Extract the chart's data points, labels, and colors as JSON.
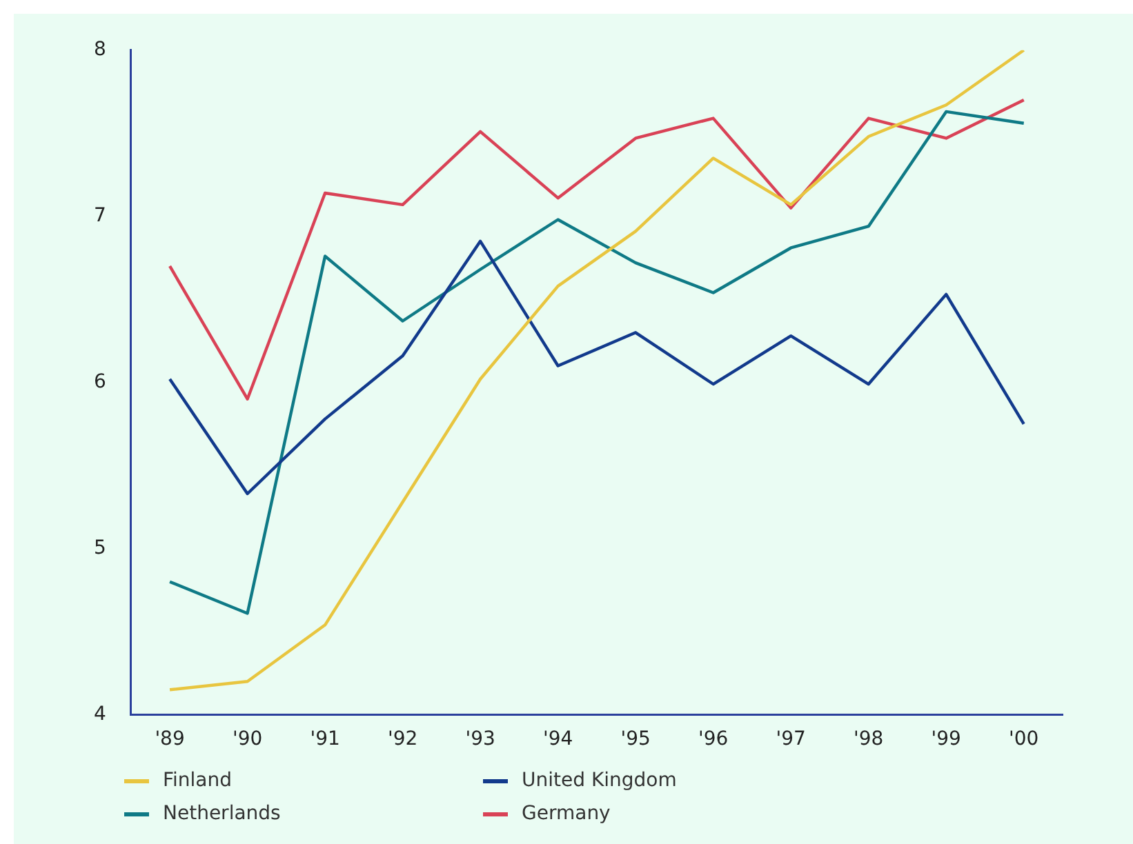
{
  "chart_data": {
    "type": "line",
    "categories": [
      "'89",
      "'90",
      "'91",
      "'92",
      "'93",
      "'94",
      "'95",
      "'96",
      "'97",
      "'98",
      "'99",
      "'00"
    ],
    "series": [
      {
        "name": "Finland",
        "color": "#e8c53f",
        "values": [
          4.15,
          4.2,
          4.54,
          5.28,
          6.02,
          6.58,
          6.91,
          7.35,
          7.07,
          7.48,
          7.67,
          8.0
        ]
      },
      {
        "name": "United Kingdom",
        "color": "#123a8c",
        "values": [
          6.02,
          5.33,
          5.78,
          6.16,
          6.85,
          6.1,
          6.3,
          5.99,
          6.28,
          5.99,
          6.53,
          5.75
        ]
      },
      {
        "name": "Netherlands",
        "color": "#0f7a86",
        "values": [
          4.8,
          4.61,
          6.76,
          6.37,
          6.68,
          6.98,
          6.72,
          6.54,
          6.81,
          6.94,
          7.63,
          7.56
        ]
      },
      {
        "name": "Germany",
        "color": "#d94256",
        "values": [
          6.7,
          5.9,
          7.14,
          7.07,
          7.51,
          7.11,
          7.47,
          7.59,
          7.05,
          7.59,
          7.47,
          7.7
        ]
      }
    ],
    "ylim": [
      4,
      8
    ],
    "yticks": [
      4,
      5,
      6,
      7,
      8
    ],
    "grid": false,
    "legend": "bottom",
    "marker": "none",
    "line_style": "solid"
  }
}
